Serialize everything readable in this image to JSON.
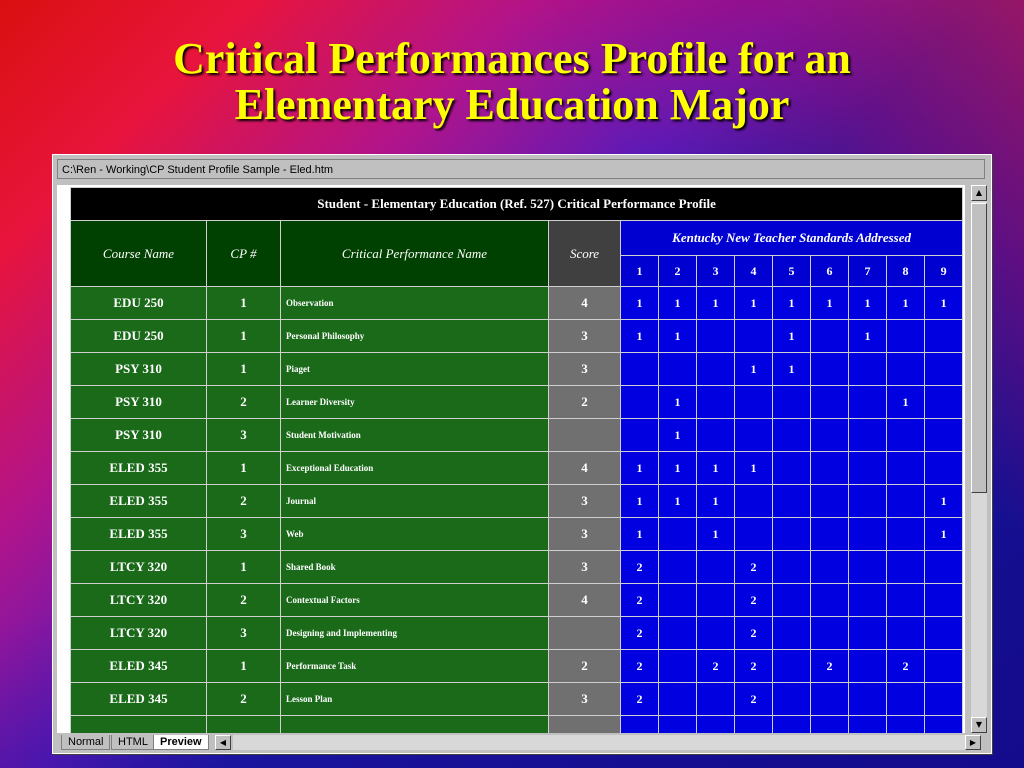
{
  "slide": {
    "title_line1": "Critical Performances Profile for an",
    "title_line2": "Elementary Education Major"
  },
  "window": {
    "title": "C:\\Ren - Working\\CP Student Profile Sample - Eled.htm"
  },
  "table": {
    "caption": "Student  - Elementary Education (Ref. 527) Critical Performance Profile",
    "headers": {
      "course": "Course Name",
      "cp": "CP #",
      "name": "Critical Performance Name",
      "score": "Score",
      "standards": "Kentucky New Teacher Standards Addressed"
    },
    "standard_numbers": [
      "1",
      "2",
      "3",
      "4",
      "5",
      "6",
      "7",
      "8",
      "9"
    ],
    "rows": [
      {
        "course": "EDU 250",
        "cp": "1",
        "name": "Observation",
        "score": "4",
        "std": [
          "1",
          "1",
          "1",
          "1",
          "1",
          "1",
          "1",
          "1",
          "1"
        ]
      },
      {
        "course": "EDU 250",
        "cp": "1",
        "name": "Personal Philosophy",
        "score": "3",
        "std": [
          "1",
          "1",
          "",
          "",
          "1",
          "",
          "1",
          "",
          ""
        ]
      },
      {
        "course": "PSY 310",
        "cp": "1",
        "name": "Piaget",
        "score": "3",
        "std": [
          "",
          "",
          "",
          "1",
          "1",
          "",
          "",
          "",
          ""
        ]
      },
      {
        "course": "PSY 310",
        "cp": "2",
        "name": "Learner Diversity",
        "score": "2",
        "std": [
          "",
          "1",
          "",
          "",
          "",
          "",
          "",
          "1",
          ""
        ]
      },
      {
        "course": "PSY 310",
        "cp": "3",
        "name": "Student Motivation",
        "score": "",
        "std": [
          "",
          "1",
          "",
          "",
          "",
          "",
          "",
          "",
          ""
        ]
      },
      {
        "course": "ELED 355",
        "cp": "1",
        "name": "Exceptional Education",
        "score": "4",
        "std": [
          "1",
          "1",
          "1",
          "1",
          "",
          "",
          "",
          "",
          ""
        ]
      },
      {
        "course": "ELED 355",
        "cp": "2",
        "name": "Journal",
        "score": "3",
        "std": [
          "1",
          "1",
          "1",
          "",
          "",
          "",
          "",
          "",
          "1"
        ]
      },
      {
        "course": "ELED 355",
        "cp": "3",
        "name": "Web",
        "score": "3",
        "std": [
          "1",
          "",
          "1",
          "",
          "",
          "",
          "",
          "",
          "1"
        ]
      },
      {
        "course": "LTCY 320",
        "cp": "1",
        "name": "Shared Book",
        "score": "3",
        "std": [
          "2",
          "",
          "",
          "2",
          "",
          "",
          "",
          "",
          ""
        ]
      },
      {
        "course": "LTCY 320",
        "cp": "2",
        "name": "Contextual Factors",
        "score": "4",
        "std": [
          "2",
          "",
          "",
          "2",
          "",
          "",
          "",
          "",
          ""
        ]
      },
      {
        "course": "LTCY 320",
        "cp": "3",
        "name": "Designing and Implementing",
        "score": "",
        "std": [
          "2",
          "",
          "",
          "2",
          "",
          "",
          "",
          "",
          ""
        ]
      },
      {
        "course": "ELED 345",
        "cp": "1",
        "name": "Performance Task",
        "score": "2",
        "std": [
          "2",
          "",
          "2",
          "2",
          "",
          "2",
          "",
          "2",
          ""
        ]
      },
      {
        "course": "ELED 345",
        "cp": "2",
        "name": "Lesson Plan",
        "score": "3",
        "std": [
          "2",
          "",
          "",
          "2",
          "",
          "",
          "",
          "",
          ""
        ]
      },
      {
        "course": "",
        "cp": "",
        "name": "",
        "score": "",
        "std": [
          "",
          "",
          "",
          "",
          "",
          "",
          "",
          "",
          ""
        ]
      }
    ]
  },
  "tabs": [
    {
      "label": "Normal",
      "active": false
    },
    {
      "label": "HTML",
      "active": false
    },
    {
      "label": "Preview",
      "active": true
    }
  ],
  "icons": {
    "scroll_up": "scroll-up-arrow-icon",
    "scroll_down": "scroll-down-arrow-icon",
    "scroll_left": "scroll-left-arrow-icon",
    "scroll_right": "scroll-right-arrow-icon"
  },
  "colors": {
    "title": "#ffff00",
    "green_cell": "#1a6a1a",
    "score_cell": "#707070",
    "standard_cell": "#0000e0"
  }
}
